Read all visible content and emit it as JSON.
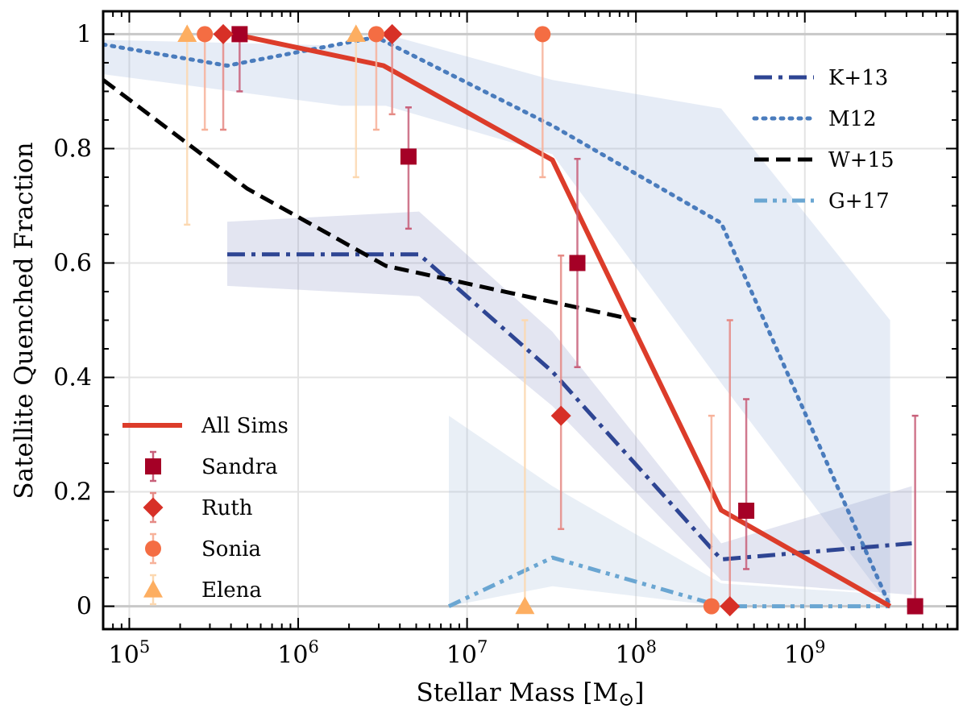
{
  "chart_data": {
    "type": "line",
    "xscale": "log",
    "xlim": [
      70000,
      8000000000
    ],
    "ylim": [
      -0.04,
      1.04
    ],
    "xlabel": "Stellar Mass [M",
    "xlabel_sub": "⊙",
    "xlabel_end": "]",
    "ylabel": "Satellite Quenched Fraction",
    "xticks": [
      {
        "value": 100000,
        "base": "10",
        "exp": "5"
      },
      {
        "value": 1000000,
        "base": "10",
        "exp": "6"
      },
      {
        "value": 10000000,
        "base": "10",
        "exp": "7"
      },
      {
        "value": 100000000,
        "base": "10",
        "exp": "8"
      },
      {
        "value": 1000000000,
        "base": "10",
        "exp": "9"
      }
    ],
    "yticks": [
      {
        "value": 0,
        "label": "0"
      },
      {
        "value": 0.2,
        "label": "0.2"
      },
      {
        "value": 0.4,
        "label": "0.4"
      },
      {
        "value": 0.6,
        "label": "0.6"
      },
      {
        "value": 0.8,
        "label": "0.8"
      },
      {
        "value": 1,
        "label": "1"
      }
    ],
    "grid": true,
    "bands": [
      {
        "color": "#8da9d6",
        "opacity": 0.22,
        "upper": [
          [
            70000,
            0.99
          ],
          [
            1800000,
            0.98
          ],
          [
            3300000,
            1.0
          ],
          [
            32000000,
            0.92
          ],
          [
            320000000,
            0.87
          ],
          [
            3200000000,
            0.5
          ]
        ],
        "lower": [
          [
            3200000000,
            0.0
          ],
          [
            320000000,
            0.39
          ],
          [
            32000000,
            0.79
          ],
          [
            3300000,
            0.875
          ],
          [
            1800000,
            0.875
          ],
          [
            70000,
            0.93
          ]
        ]
      },
      {
        "color": "#8f97c6",
        "opacity": 0.25,
        "upper": [
          [
            380000,
            0.672
          ],
          [
            5200000,
            0.69
          ],
          [
            32000000,
            0.48
          ],
          [
            320000000,
            0.11
          ],
          [
            4300000000,
            0.21
          ]
        ],
        "lower": [
          [
            4300000000,
            0.02
          ],
          [
            320000000,
            0.045
          ],
          [
            32000000,
            0.35
          ],
          [
            5200000,
            0.542
          ],
          [
            380000,
            0.56
          ]
        ]
      },
      {
        "color": "#a9bfdd",
        "opacity": 0.25,
        "upper": [
          [
            7800000,
            0.333
          ],
          [
            32000000,
            0.21
          ],
          [
            320000000,
            0.04
          ],
          [
            3200000000,
            0.02
          ]
        ],
        "lower": [
          [
            3200000000,
            0.0
          ],
          [
            320000000,
            0.0
          ],
          [
            32000000,
            0.035
          ],
          [
            7800000,
            0.0
          ]
        ]
      }
    ],
    "series": [
      {
        "name": "K+13",
        "color": "#2e4593",
        "width": 5,
        "dash": "22 8 5 8",
        "points": [
          [
            380000,
            0.615
          ],
          [
            5200000,
            0.615
          ],
          [
            32000000,
            0.41
          ],
          [
            320000000,
            0.082
          ],
          [
            4300000000,
            0.11
          ]
        ]
      },
      {
        "name": "M12",
        "color": "#4a7cbd",
        "width": 5,
        "dash": "3 8",
        "cap": "round",
        "points": [
          [
            70000,
            0.982
          ],
          [
            380000,
            0.945
          ],
          [
            2900000,
            0.995
          ],
          [
            32000000,
            0.84
          ],
          [
            320000000,
            0.67
          ],
          [
            3200000000,
            0.0
          ]
        ]
      },
      {
        "name": "W+15",
        "color": "#000000",
        "width": 5,
        "dash": "18 9",
        "points": [
          [
            70000,
            0.92
          ],
          [
            500000,
            0.73
          ],
          [
            3300000,
            0.595
          ],
          [
            100000000,
            0.5
          ]
        ]
      },
      {
        "name": "G+17",
        "color": "#6aa6d2",
        "width": 5,
        "dash": "16 7 5 7 5 7",
        "points": [
          [
            7800000,
            0.0
          ],
          [
            32000000,
            0.085
          ],
          [
            320000000,
            0.0
          ],
          [
            3200000000,
            0.0
          ]
        ]
      },
      {
        "name": "All Sims",
        "color": "#dc3c2a",
        "width": 6,
        "dash": "",
        "points": [
          [
            480000,
            0.996
          ],
          [
            3200000,
            0.945
          ],
          [
            32000000,
            0.78
          ],
          [
            320000000,
            0.168
          ],
          [
            3200000000,
            0.0
          ]
        ]
      }
    ],
    "scatter": [
      {
        "name": "Sandra",
        "marker": "square",
        "color": "#a50026",
        "errcolor": "#c8607a",
        "points": [
          {
            "x": 450000,
            "y": 1.0,
            "lo": 0.9,
            "hi": 1.0
          },
          {
            "x": 4500000,
            "y": 0.786,
            "lo": 0.66,
            "hi": 0.872
          },
          {
            "x": 45000000,
            "y": 0.6,
            "lo": 0.418,
            "hi": 0.782
          },
          {
            "x": 450000000,
            "y": 0.167,
            "lo": 0.065,
            "hi": 0.362
          },
          {
            "x": 4500000000,
            "y": 0.0,
            "lo": 0.0,
            "hi": 0.333
          }
        ]
      },
      {
        "name": "Ruth",
        "marker": "diamond",
        "color": "#d73027",
        "errcolor": "#e58a85",
        "points": [
          {
            "x": 360000,
            "y": 1.0,
            "lo": 0.833,
            "hi": 1.0
          },
          {
            "x": 3600000,
            "y": 1.0,
            "lo": 0.86,
            "hi": 1.0
          },
          {
            "x": 36000000,
            "y": 0.333,
            "lo": 0.135,
            "hi": 0.613
          },
          {
            "x": 360000000,
            "y": 0.0,
            "lo": 0.0,
            "hi": 0.5
          }
        ]
      },
      {
        "name": "Sonia",
        "marker": "circle",
        "color": "#f46d43",
        "errcolor": "#f7b29a",
        "points": [
          {
            "x": 280000,
            "y": 1.0,
            "lo": 0.833,
            "hi": 1.0
          },
          {
            "x": 2900000,
            "y": 1.0,
            "lo": 0.833,
            "hi": 1.0
          },
          {
            "x": 28000000,
            "y": 1.0,
            "lo": 0.75,
            "hi": 1.0
          },
          {
            "x": 280000000,
            "y": 0.0,
            "lo": 0.0,
            "hi": 0.333
          }
        ]
      },
      {
        "name": "Elena",
        "marker": "triangle",
        "color": "#fdae61",
        "errcolor": "#fcd8b0",
        "points": [
          {
            "x": 220000,
            "y": 1.0,
            "lo": 0.667,
            "hi": 1.0
          },
          {
            "x": 2200000,
            "y": 1.0,
            "lo": 0.75,
            "hi": 1.0
          },
          {
            "x": 22000000,
            "y": 0.0,
            "lo": 0.0,
            "hi": 0.5
          }
        ]
      }
    ],
    "legends": [
      {
        "placement": "upper-right",
        "entries": [
          "K+13",
          "M12",
          "W+15",
          "G+17"
        ]
      },
      {
        "placement": "lower-left",
        "entries": [
          "All Sims",
          "Sandra",
          "Ruth",
          "Sonia",
          "Elena"
        ]
      }
    ]
  }
}
